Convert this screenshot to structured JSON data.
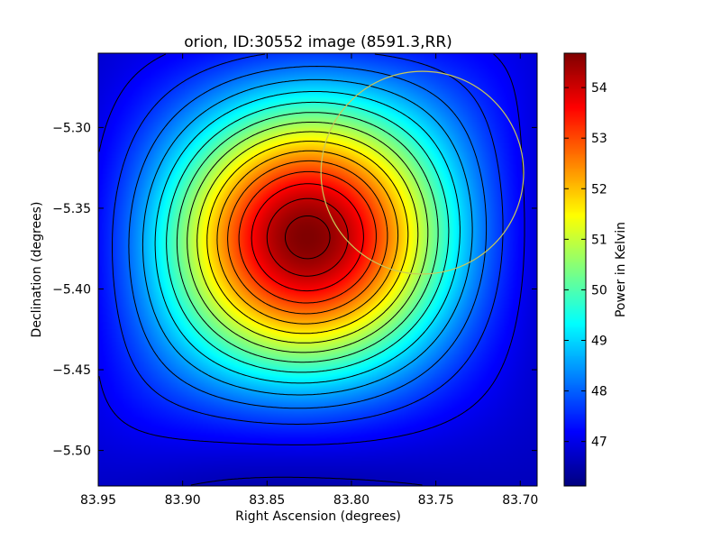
{
  "chart_data": {
    "type": "heatmap",
    "title": "orion, ID:30552 image (8591.3,RR)",
    "xlabel": "Right Ascension (degrees)",
    "ylabel": "Declination (degrees)",
    "colorbar_label": "Power in Kelvin",
    "xlim": [
      83.95,
      83.69
    ],
    "ylim": [
      -5.522,
      -5.254
    ],
    "x_ticks": [
      {
        "value": 83.95,
        "label": "83.95"
      },
      {
        "value": 83.9,
        "label": "83.90"
      },
      {
        "value": 83.85,
        "label": "83.85"
      },
      {
        "value": 83.8,
        "label": "83.80"
      },
      {
        "value": 83.75,
        "label": "83.75"
      },
      {
        "value": 83.7,
        "label": "83.70"
      }
    ],
    "y_ticks": [
      {
        "value": -5.3,
        "label": "−5.30"
      },
      {
        "value": -5.35,
        "label": "−5.35"
      },
      {
        "value": -5.4,
        "label": "−5.40"
      },
      {
        "value": -5.45,
        "label": "−5.45"
      },
      {
        "value": -5.5,
        "label": "−5.50"
      }
    ],
    "colorbar_range": [
      46.12,
      54.68
    ],
    "colorbar_ticks": [
      {
        "value": 47,
        "label": "47"
      },
      {
        "value": 48,
        "label": "48"
      },
      {
        "value": 49,
        "label": "49"
      },
      {
        "value": 50,
        "label": "50"
      },
      {
        "value": 51,
        "label": "51"
      },
      {
        "value": 52,
        "label": "52"
      },
      {
        "value": 53,
        "label": "53"
      },
      {
        "value": 54,
        "label": "54"
      }
    ],
    "colormap": "jet",
    "peak": {
      "ra": 83.826,
      "dec": -5.368,
      "value": 54.68
    },
    "background_value": 46.12,
    "contour_levels": [
      46.6,
      47.1,
      47.6,
      48.1,
      48.6,
      49.1,
      49.6,
      50.1,
      50.6,
      51.1,
      51.6,
      52.1,
      52.6,
      53.1,
      53.6,
      54.1,
      54.5
    ],
    "contour_color": "#000000",
    "circle": {
      "ra": 83.758,
      "dec": -5.328,
      "radius_deg": 0.06,
      "color": "#c8c85a"
    },
    "grid": false,
    "legend": "none"
  }
}
